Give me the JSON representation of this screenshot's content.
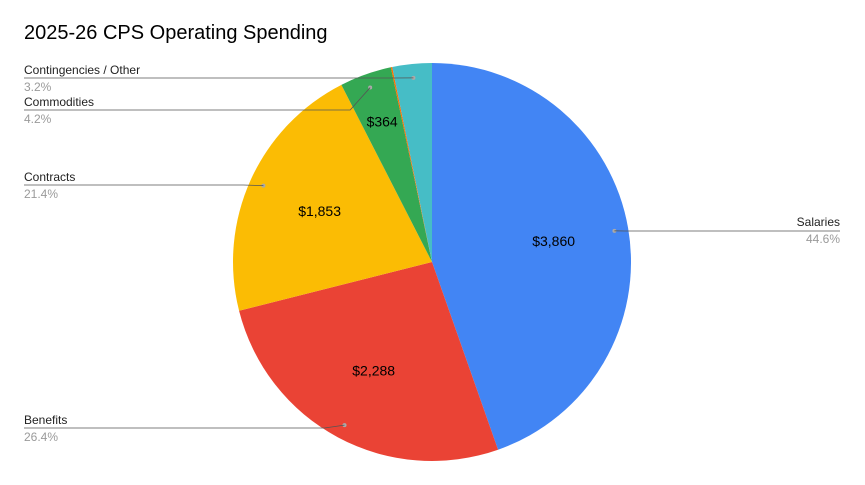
{
  "chart_data": {
    "type": "pie",
    "title": "2025-26 CPS Operating Spending",
    "series": [
      {
        "name": "Salaries",
        "value": 3860,
        "value_label": "$3,860",
        "percent_label": "44.6%",
        "color": "#4285f4"
      },
      {
        "name": "Benefits",
        "value": 2288,
        "value_label": "$2,288",
        "percent_label": "26.4%",
        "color": "#ea4335"
      },
      {
        "name": "Contracts",
        "value": 1853,
        "value_label": "$1,853",
        "percent_label": "21.4%",
        "color": "#fbbc04"
      },
      {
        "name": "Commodities",
        "value": 364,
        "value_label": "$364",
        "percent_label": "4.2%",
        "color": "#34a853"
      },
      {
        "name": "",
        "value": 10,
        "value_label": "",
        "percent_label": "",
        "color": "#ff6d01"
      },
      {
        "name": "Contingencies / Other",
        "value": 277,
        "value_label": "",
        "percent_label": "3.2%",
        "color": "#46bdc6"
      }
    ],
    "legend": "outside labels with leader lines"
  }
}
